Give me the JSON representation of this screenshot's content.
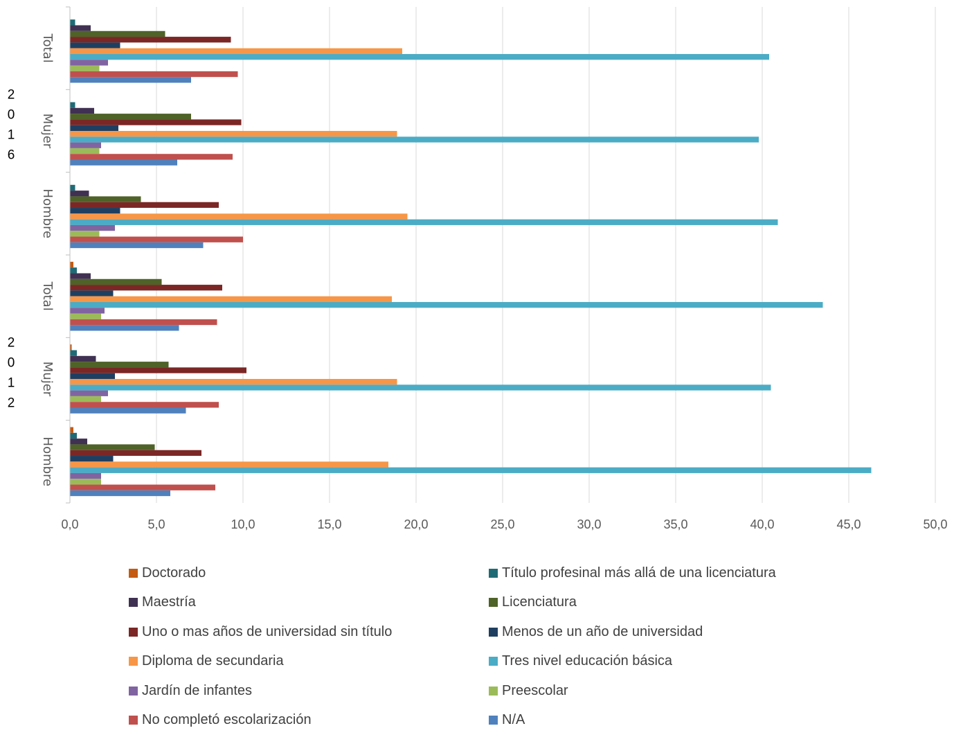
{
  "chart_data": {
    "type": "bar",
    "orientation": "horizontal",
    "xlim": [
      0,
      50
    ],
    "x_ticks": [
      "0,0",
      "5,0",
      "10,0",
      "15,0",
      "20,0",
      "25,0",
      "30,0",
      "35,0",
      "40,0",
      "45,0",
      "50,0"
    ],
    "grid": true,
    "legend_position": "bottom",
    "groups": [
      {
        "year_label": "2016",
        "categories": [
          "Total",
          "Mujer",
          "Hombre"
        ]
      },
      {
        "year_label": "2012",
        "categories": [
          "Total",
          "Mujer",
          "Hombre"
        ]
      }
    ],
    "categories": [
      "2016 Total",
      "2016 Mujer",
      "2016 Hombre",
      "2012 Total",
      "2012 Mujer",
      "2012 Hombre"
    ],
    "series": [
      {
        "name": "Doctorado",
        "color": "#C55A11",
        "values": [
          0.0,
          0.0,
          0.0,
          0.2,
          0.1,
          0.2
        ]
      },
      {
        "name": "Título profesinal más allá de una licenciatura",
        "color": "#1F6B75",
        "values": [
          0.3,
          0.3,
          0.3,
          0.4,
          0.4,
          0.4
        ]
      },
      {
        "name": "Maestría",
        "color": "#403152",
        "values": [
          1.2,
          1.4,
          1.1,
          1.2,
          1.5,
          1.0
        ]
      },
      {
        "name": "Licenciatura",
        "color": "#4F6228",
        "values": [
          5.5,
          7.0,
          4.1,
          5.3,
          5.7,
          4.9
        ]
      },
      {
        "name": "Uno o mas años de universidad sin título",
        "color": "#7B2726",
        "values": [
          9.3,
          9.9,
          8.6,
          8.8,
          10.2,
          7.6
        ]
      },
      {
        "name": "Menos de un año de universidad",
        "color": "#1F3F61",
        "values": [
          2.9,
          2.8,
          2.9,
          2.5,
          2.6,
          2.5
        ]
      },
      {
        "name": "Diploma de secundaria",
        "color": "#F79646",
        "values": [
          19.2,
          18.9,
          19.5,
          18.6,
          18.9,
          18.4
        ]
      },
      {
        "name": "Tres nivel educación básica",
        "color": "#4BACC6",
        "values": [
          40.4,
          39.8,
          40.9,
          43.5,
          40.5,
          46.3
        ]
      },
      {
        "name": "Jardín de infantes",
        "color": "#8064A2",
        "values": [
          2.2,
          1.8,
          2.6,
          2.0,
          2.2,
          1.8
        ]
      },
      {
        "name": "Preescolar",
        "color": "#9BBB59",
        "values": [
          1.7,
          1.7,
          1.7,
          1.8,
          1.8,
          1.8
        ]
      },
      {
        "name": "No completó escolarización",
        "color": "#C0504D",
        "values": [
          9.7,
          9.4,
          10.0,
          8.5,
          8.6,
          8.4
        ]
      },
      {
        "name": "N/A",
        "color": "#4F81BD",
        "values": [
          7.0,
          6.2,
          7.7,
          6.3,
          6.7,
          5.8
        ]
      }
    ]
  }
}
